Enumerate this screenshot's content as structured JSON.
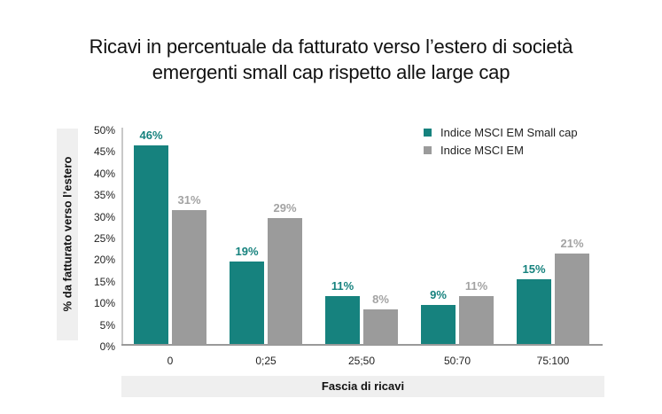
{
  "title": {
    "line1": "Ricavi in percentuale da fatturato verso l’estero di società",
    "line2": "emergenti small cap rispetto alle large cap"
  },
  "axes": {
    "ylabel": "% da fatturato verso l’estero",
    "xlabel": "Fascia di ricavi",
    "yticks": [
      "0%",
      "5%",
      "10%",
      "15%",
      "20%",
      "25%",
      "30%",
      "35%",
      "40%",
      "45%",
      "50%"
    ]
  },
  "legend": {
    "items": [
      {
        "label": "Indice MSCI EM Small cap",
        "color": "#16827e"
      },
      {
        "label": "Indice MSCI EM",
        "color": "#9b9b9b"
      }
    ]
  },
  "labels": {
    "s1": [
      "46%",
      "19%",
      "11%",
      "9%",
      "15%"
    ],
    "s2": [
      "31%",
      "29%",
      "8%",
      "11%",
      "21%"
    ]
  },
  "chart_data": {
    "type": "bar",
    "title": "Ricavi in percentuale da fatturato verso l’estero di società emergenti small cap rispetto alle large cap",
    "categories": [
      "0",
      "0;25",
      "25;50",
      "50:70",
      "75:100"
    ],
    "series": [
      {
        "name": "Indice MSCI EM Small cap",
        "color": "#16827e",
        "values": [
          46,
          19,
          11,
          9,
          15
        ]
      },
      {
        "name": "Indice MSCI EM",
        "color": "#9b9b9b",
        "values": [
          31,
          29,
          8,
          11,
          21
        ]
      }
    ],
    "xlabel": "Fascia di ricavi",
    "ylabel": "% da fatturato verso l’estero",
    "ylim": [
      0,
      50
    ],
    "ytick_step": 5,
    "grid": false,
    "legend_position": "top-right",
    "data_labels": true
  }
}
